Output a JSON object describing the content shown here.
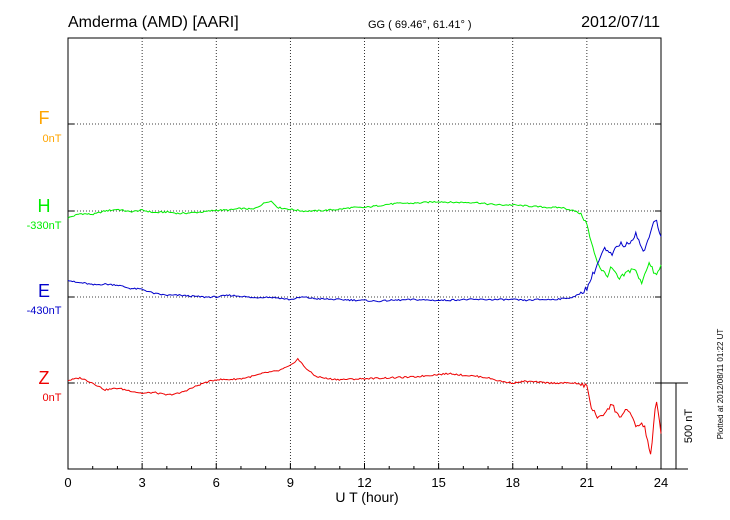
{
  "header": {
    "station": "Amderma (AMD)  [AARI]",
    "coords": "GG ( 69.46°,  61.41° )",
    "date": "2012/07/11"
  },
  "side_note": "Plotted at 2012/08/11 01:22 UT",
  "scale_bar_label": "500 nT",
  "colors": {
    "F": "#ffa500",
    "H": "#00ee00",
    "E": "#0000cc",
    "Z": "#ee0000",
    "grid": "#000000"
  },
  "chart_data": {
    "type": "line",
    "title": "Amderma (AMD)  [AARI]",
    "xlabel": "U T (hour)",
    "ylabel": "",
    "xlim": [
      0,
      24
    ],
    "x_ticks": [
      0,
      3,
      6,
      9,
      12,
      15,
      18,
      21,
      24
    ],
    "x_tick_labels": [
      "0",
      "3",
      "6",
      "9",
      "12",
      "15",
      "18",
      "21",
      "24"
    ],
    "grid": true,
    "units": "nT",
    "scale_bar_nT": 500,
    "components": [
      {
        "name": "F",
        "baseline": "0nT",
        "values": []
      },
      {
        "name": "H",
        "baseline": "-330nT"
      },
      {
        "name": "E",
        "baseline": "-430nT"
      },
      {
        "name": "Z",
        "baseline": "0nT"
      }
    ],
    "series": [
      {
        "name": "H",
        "x": [
          0,
          0.5,
          1,
          1.5,
          2,
          2.5,
          3,
          3.5,
          4,
          4.5,
          5,
          5.5,
          6,
          6.5,
          7,
          7.5,
          8,
          8.2,
          8.5,
          9,
          9.5,
          10,
          10.5,
          11,
          11.5,
          12,
          12.5,
          13,
          13.5,
          14,
          14.5,
          15,
          15.5,
          16,
          16.5,
          17,
          17.5,
          18,
          18.5,
          19,
          19.5,
          20,
          20.5,
          20.8,
          21,
          21.2,
          21.5,
          21.8,
          22,
          22.3,
          22.6,
          22.9,
          23.2,
          23.5,
          23.8,
          24
        ],
        "values": [
          -40,
          -15,
          -20,
          0,
          10,
          -5,
          5,
          -10,
          -5,
          -15,
          -10,
          -5,
          5,
          5,
          15,
          10,
          50,
          60,
          20,
          10,
          0,
          0,
          5,
          10,
          20,
          20,
          30,
          40,
          45,
          45,
          50,
          55,
          50,
          50,
          50,
          40,
          35,
          35,
          30,
          25,
          20,
          20,
          0,
          -20,
          -80,
          -200,
          -320,
          -380,
          -330,
          -400,
          -360,
          -330,
          -420,
          -300,
          -380,
          -320
        ]
      },
      {
        "name": "E",
        "x": [
          0,
          0.3,
          0.7,
          1,
          1.5,
          2,
          2.5,
          3,
          3.5,
          4,
          4.5,
          5,
          5.5,
          6,
          6.5,
          7,
          7.5,
          8,
          8.5,
          9,
          9.5,
          10,
          11,
          12,
          12.5,
          13,
          14,
          15,
          16,
          17,
          18,
          18.5,
          19,
          19.5,
          20,
          20.5,
          21,
          21.3,
          21.7,
          22,
          22.3,
          22.6,
          23,
          23.3,
          23.6,
          23.8,
          24
        ],
        "values": [
          100,
          85,
          80,
          70,
          75,
          70,
          50,
          45,
          20,
          10,
          10,
          5,
          0,
          0,
          10,
          5,
          -5,
          0,
          -5,
          -15,
          0,
          -10,
          -15,
          -20,
          -25,
          -20,
          -15,
          -20,
          -15,
          -15,
          -15,
          -20,
          -15,
          -15,
          -10,
          0,
          50,
          150,
          280,
          240,
          310,
          300,
          370,
          250,
          400,
          460,
          340
        ]
      },
      {
        "name": "Z",
        "x": [
          0,
          0.5,
          1,
          1.5,
          2,
          2.5,
          3,
          3.5,
          4,
          4.5,
          5,
          5.5,
          6,
          6.5,
          7,
          7.5,
          8,
          8.5,
          9,
          9.3,
          9.6,
          10,
          10.5,
          11,
          12,
          13,
          14,
          15,
          15.5,
          16,
          16.5,
          17,
          17.5,
          18,
          18.5,
          19,
          19.5,
          20,
          20.5,
          21,
          21.2,
          21.5,
          22,
          22.3,
          22.6,
          23,
          23.3,
          23.6,
          23.8,
          24
        ],
        "values": [
          15,
          30,
          0,
          -40,
          -30,
          -45,
          -60,
          -55,
          -70,
          -60,
          -30,
          0,
          20,
          20,
          25,
          40,
          60,
          70,
          100,
          140,
          90,
          40,
          25,
          20,
          25,
          30,
          35,
          50,
          55,
          45,
          40,
          30,
          10,
          0,
          10,
          5,
          0,
          0,
          0,
          -20,
          -150,
          -210,
          -120,
          -200,
          -150,
          -250,
          -240,
          -420,
          -90,
          -280
        ]
      }
    ]
  }
}
